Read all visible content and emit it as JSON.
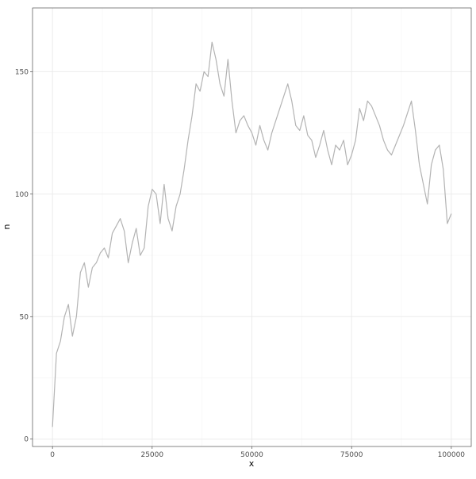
{
  "chart_data": {
    "type": "line",
    "x_label": "x",
    "y_label": "n",
    "x": [
      0,
      500,
      1000,
      2000,
      3000,
      4000,
      5000,
      6000,
      7000,
      8000,
      9000,
      10000,
      11000,
      12000,
      13000,
      14000,
      15000,
      16000,
      17000,
      18000,
      19000,
      20000,
      21000,
      22000,
      23000,
      24000,
      25000,
      26000,
      27000,
      28000,
      29000,
      30000,
      31000,
      32000,
      33000,
      34000,
      35000,
      36000,
      37000,
      38000,
      39000,
      40000,
      41000,
      42000,
      43000,
      44000,
      45000,
      46000,
      47000,
      48000,
      49000,
      50000,
      51000,
      52000,
      53000,
      54000,
      55000,
      56000,
      57000,
      58000,
      59000,
      60000,
      61000,
      62000,
      63000,
      64000,
      65000,
      66000,
      67000,
      68000,
      69000,
      70000,
      71000,
      72000,
      73000,
      74000,
      75000,
      76000,
      77000,
      78000,
      79000,
      80000,
      81000,
      82000,
      83000,
      84000,
      85000,
      86000,
      87000,
      88000,
      89000,
      90000,
      91000,
      92000,
      93000,
      94000,
      95000,
      96000,
      97000,
      98000,
      99000,
      100000
    ],
    "series": [
      {
        "name": "n",
        "color": "#b3b3b3",
        "values": [
          5,
          20,
          35,
          40,
          50,
          55,
          42,
          50,
          68,
          72,
          62,
          70,
          72,
          76,
          78,
          74,
          84,
          87,
          90,
          85,
          72,
          80,
          86,
          75,
          78,
          95,
          102,
          100,
          88,
          104,
          90,
          85,
          95,
          100,
          110,
          122,
          132,
          145,
          142,
          150,
          148,
          162,
          155,
          145,
          140,
          155,
          138,
          125,
          130,
          132,
          128,
          125,
          120,
          128,
          122,
          118,
          125,
          130,
          135,
          140,
          145,
          138,
          128,
          126,
          132,
          124,
          122,
          115,
          120,
          126,
          118,
          112,
          120,
          118,
          122,
          112,
          116,
          122,
          135,
          130,
          138,
          136,
          132,
          128,
          122,
          118,
          116,
          120,
          124,
          128,
          133,
          138,
          126,
          112,
          104,
          96,
          112,
          118,
          120,
          110,
          88,
          92
        ]
      }
    ],
    "xlim": [
      -5000,
      105000
    ],
    "ylim": [
      -3,
      176
    ],
    "xticks": [
      0,
      25000,
      50000,
      75000,
      100000
    ],
    "yticks": [
      0,
      50,
      100,
      150
    ],
    "xminor": [
      12500,
      37500,
      62500,
      87500
    ],
    "yminor": [
      25,
      75,
      125
    ],
    "grid": true
  }
}
